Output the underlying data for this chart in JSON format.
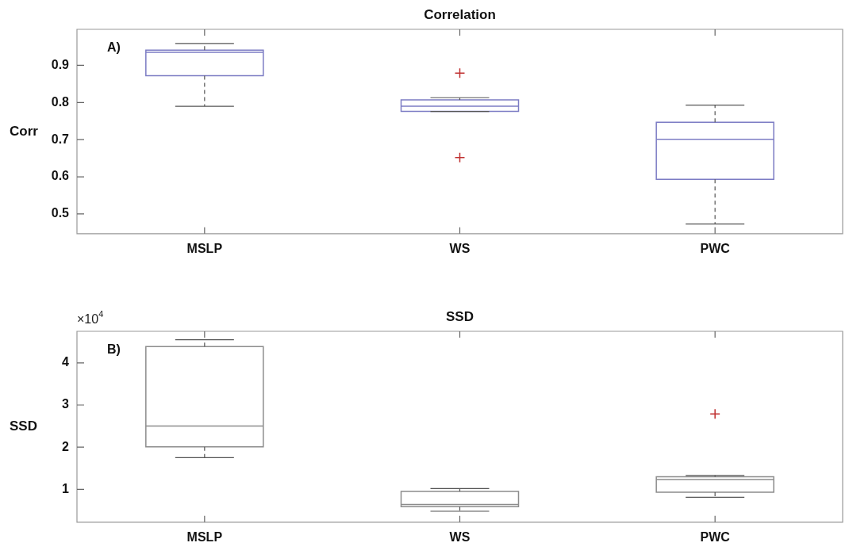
{
  "chart_data": [
    {
      "type": "box",
      "title": "Correlation",
      "ylabel": "Corr",
      "categories": [
        "MSLP",
        "WS",
        "PWC"
      ],
      "color": "#7c7cc4",
      "ylim": [
        0.447,
        0.997
      ],
      "yticks": [
        0.5,
        0.6,
        0.7,
        0.8,
        0.9
      ],
      "annotations": [
        "A)"
      ],
      "boxes": [
        {
          "low": 0.79,
          "q1": 0.872,
          "median": 0.935,
          "q3": 0.941,
          "high": 0.959
        },
        {
          "low": 0.776,
          "q1": 0.776,
          "median": 0.79,
          "q3": 0.807,
          "high": 0.813,
          "outliers": [
            0.879,
            0.652
          ]
        },
        {
          "low": 0.473,
          "q1": 0.593,
          "median": 0.701,
          "q3": 0.747,
          "high": 0.793
        }
      ]
    },
    {
      "type": "box",
      "title": "SSD",
      "ylabel": "SSD",
      "categories": [
        "MSLP",
        "WS",
        "PWC"
      ],
      "color": "#8c8c8c",
      "ylim": [
        0.22,
        4.75
      ],
      "yticks": [
        1,
        2,
        3,
        4
      ],
      "annotations": [
        "B)",
        "×10$^{4}$"
      ],
      "boxes": [
        {
          "low": 1.75,
          "q1": 2.01,
          "median": 2.5,
          "q3": 4.39,
          "high": 4.55
        },
        {
          "low": 0.48,
          "q1": 0.59,
          "median": 0.64,
          "q3": 0.95,
          "high": 1.02
        },
        {
          "low": 0.81,
          "q1": 0.93,
          "median": 1.23,
          "q3": 1.3,
          "high": 1.33,
          "outliers": [
            2.79
          ]
        }
      ]
    }
  ]
}
